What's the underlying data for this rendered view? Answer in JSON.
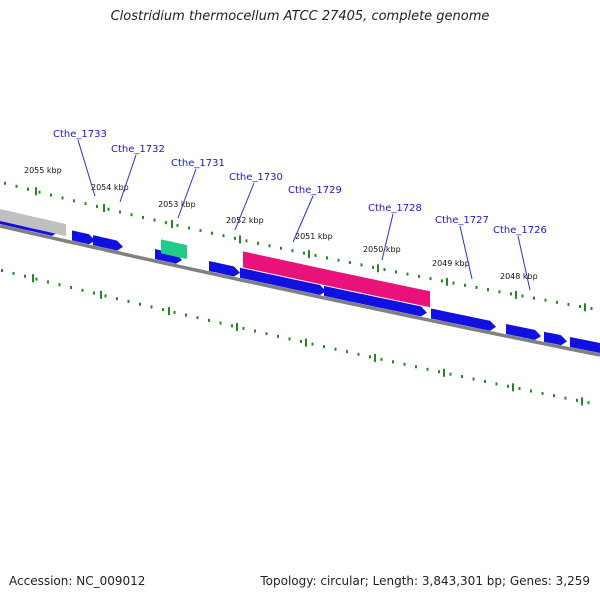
{
  "title": "Clostridium thermocellum ATCC 27405, complete genome",
  "footer": {
    "accession": "Accession: NC_009012",
    "info": "Topology: circular; Length: 3,843,301 bp; Genes: 3,259"
  },
  "colors": {
    "forward_cds": "#1010e0",
    "highlight_gene": "#e8127a",
    "rna_gene": "#22cc88",
    "other_feature": "#c0c0c0",
    "backbone": "#808080",
    "ticks": "#228822",
    "gene_label": "#1a1acc",
    "leader_line": "#2233cc"
  },
  "kbp_ticks": [
    "2055 kbp",
    "2054 kbp",
    "2053 kbp",
    "2052 kbp",
    "2051 kbp",
    "2050 kbp",
    "2049 kbp",
    "2048 kbp"
  ],
  "gene_labels": [
    "Cthe_1733",
    "Cthe_1732",
    "Cthe_1731",
    "Cthe_1730",
    "Cthe_1729",
    "Cthe_1728",
    "Cthe_1727",
    "Cthe_1726"
  ]
}
